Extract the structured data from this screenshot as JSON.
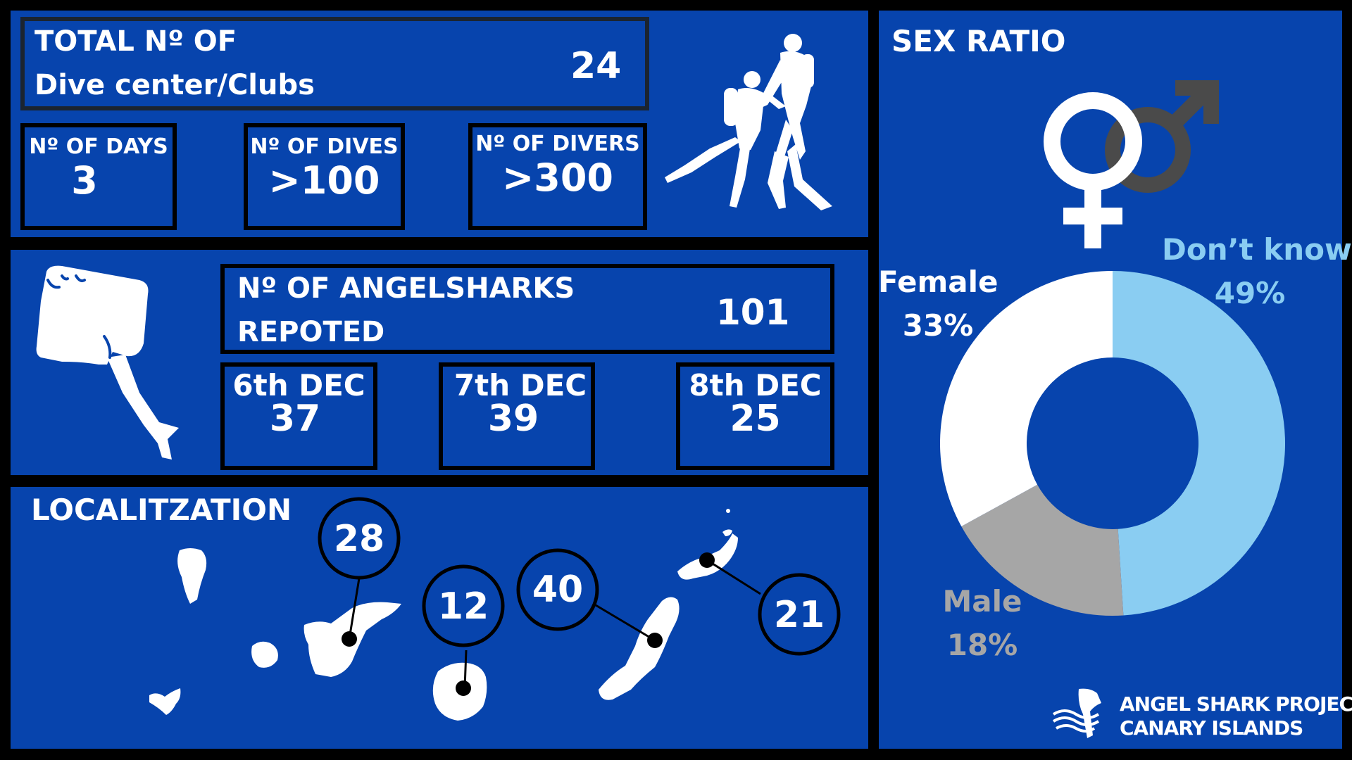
{
  "colors": {
    "background": "#000000",
    "panel": "#0744ad",
    "white": "#ffffff",
    "light_blue": "#8acdf2",
    "grey": "#a6a6a6",
    "male_symbol": "#4a4a4a"
  },
  "stats": {
    "total_label_line1": "TOTAL Nº OF",
    "total_label_line2": "Dive center/Clubs",
    "total_value": "24",
    "days_label": "Nº OF DAYS",
    "days_value": "3",
    "dives_label": "Nº OF DIVES",
    "dives_value": ">100",
    "divers_label": "Nº OF DIVERS",
    "divers_value": ">300"
  },
  "angelsharks": {
    "label_line1": "Nº OF ANGELSHARKS",
    "label_line2": "REPOTED",
    "total": "101",
    "days": [
      {
        "label": "6th DEC",
        "value": "37"
      },
      {
        "label": "7th DEC",
        "value": "39"
      },
      {
        "label": "8th DEC",
        "value": "25"
      }
    ]
  },
  "localization": {
    "title": "LOCALITZATION",
    "markers": [
      "28",
      "12",
      "40",
      "21"
    ]
  },
  "logo": {
    "line1": "ANGEL SHARK PROJECT:",
    "line2": "CANARY ISLANDS"
  },
  "chart_data": {
    "type": "pie",
    "title": "SEX RATIO",
    "donut": true,
    "slices": [
      {
        "label": "Don’t know",
        "value": 49,
        "display": "49%",
        "color": "#8acdf2"
      },
      {
        "label": "Male",
        "value": 18,
        "display": "18%",
        "color": "#a6a6a6"
      },
      {
        "label": "Female",
        "value": 33,
        "display": "33%",
        "color": "#ffffff"
      }
    ]
  }
}
